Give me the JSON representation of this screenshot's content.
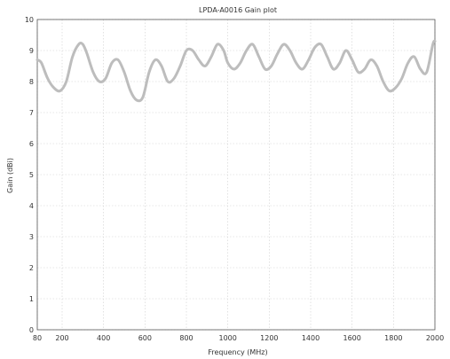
{
  "chart_data": {
    "type": "line",
    "title": "LPDA-A0016 Gain plot",
    "xlabel": "Frequency (MHz)",
    "ylabel": "Gain (dBi)",
    "xlim": [
      80,
      2000
    ],
    "ylim": [
      0,
      10
    ],
    "x_ticks": [
      80,
      200,
      400,
      600,
      800,
      1000,
      1200,
      1400,
      1600,
      1800,
      2000
    ],
    "x_tick_labels": [
      "80",
      "200",
      "400",
      "600",
      "800",
      "1000",
      "1200",
      "1400",
      "1600",
      "1800",
      "2000"
    ],
    "y_ticks": [
      0,
      1,
      2,
      3,
      4,
      5,
      6,
      7,
      8,
      9,
      10
    ],
    "y_tick_labels": [
      "0",
      "1",
      "2",
      "3",
      "4",
      "5",
      "6",
      "7",
      "8",
      "9",
      "10"
    ],
    "grid": true,
    "series": [
      {
        "color": "#bdbdbd",
        "x": [
          80,
          100,
          130,
          160,
          190,
          220,
          250,
          280,
          300,
          320,
          350,
          380,
          410,
          440,
          470,
          500,
          530,
          560,
          590,
          620,
          650,
          680,
          710,
          740,
          770,
          800,
          830,
          860,
          890,
          920,
          950,
          980,
          1000,
          1030,
          1060,
          1090,
          1120,
          1150,
          1180,
          1210,
          1240,
          1270,
          1300,
          1330,
          1360,
          1390,
          1420,
          1450,
          1480,
          1510,
          1540,
          1570,
          1600,
          1630,
          1660,
          1690,
          1720,
          1750,
          1780,
          1810,
          1840,
          1870,
          1900,
          1930,
          1960,
          1990,
          2000
        ],
        "y": [
          8.7,
          8.6,
          8.1,
          7.8,
          7.7,
          8.0,
          8.8,
          9.2,
          9.2,
          8.9,
          8.3,
          8.0,
          8.1,
          8.6,
          8.7,
          8.3,
          7.7,
          7.4,
          7.5,
          8.3,
          8.7,
          8.5,
          8.0,
          8.1,
          8.5,
          9.0,
          9.0,
          8.7,
          8.5,
          8.8,
          9.2,
          9.0,
          8.6,
          8.4,
          8.6,
          9.0,
          9.2,
          8.8,
          8.4,
          8.5,
          8.9,
          9.2,
          9.0,
          8.6,
          8.4,
          8.7,
          9.1,
          9.2,
          8.8,
          8.4,
          8.6,
          9.0,
          8.7,
          8.3,
          8.4,
          8.7,
          8.5,
          8.0,
          7.7,
          7.8,
          8.1,
          8.6,
          8.8,
          8.4,
          8.3,
          9.2,
          9.3
        ]
      }
    ]
  }
}
